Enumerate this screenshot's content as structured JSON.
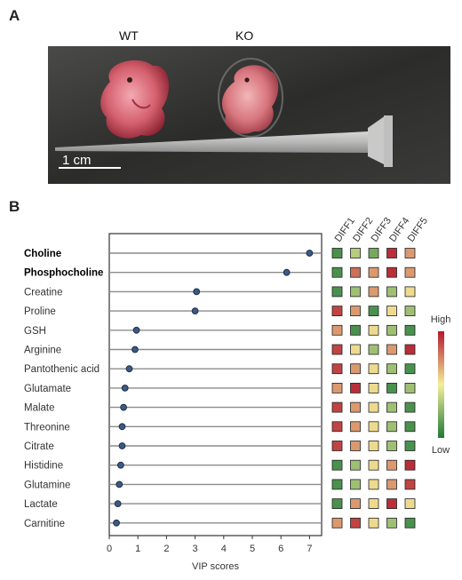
{
  "panel_a": {
    "letter": "A",
    "group_labels": [
      "WT",
      "KO"
    ],
    "scale_bar_label": "1 cm"
  },
  "panel_b": {
    "letter": "B"
  },
  "colors": {
    "dot_fill": "#3b5a85",
    "dot_stroke": "#1e2e4a",
    "line": "#8c8c8c",
    "heat_low": "#1f7a3a",
    "heat_mid": "#f5ef9a",
    "heat_high": "#b3192e"
  },
  "chart_data": {
    "type": "dot",
    "xlabel": "VIP scores",
    "xlim": [
      0,
      7.3
    ],
    "xticks": [
      0,
      1,
      2,
      3,
      4,
      5,
      6,
      7
    ],
    "metabolites": [
      {
        "name": "Choline",
        "vip": 7.0,
        "bold": true,
        "heat": [
          0.1,
          0.35,
          0.2,
          0.95,
          0.7
        ]
      },
      {
        "name": "Phosphocholine",
        "vip": 6.2,
        "bold": true,
        "heat": [
          0.1,
          0.8,
          0.7,
          0.95,
          0.7
        ]
      },
      {
        "name": "Creatine",
        "vip": 3.05,
        "bold": false,
        "heat": [
          0.1,
          0.3,
          0.7,
          0.3,
          0.55
        ]
      },
      {
        "name": "Proline",
        "vip": 3.0,
        "bold": false,
        "heat": [
          0.9,
          0.7,
          0.1,
          0.55,
          0.3
        ]
      },
      {
        "name": "GSH",
        "vip": 0.95,
        "bold": false,
        "heat": [
          0.7,
          0.1,
          0.55,
          0.3,
          0.1
        ]
      },
      {
        "name": "Arginine",
        "vip": 0.9,
        "bold": false,
        "heat": [
          0.9,
          0.55,
          0.3,
          0.7,
          0.95
        ]
      },
      {
        "name": "Pantothenic acid",
        "vip": 0.7,
        "bold": false,
        "heat": [
          0.9,
          0.7,
          0.55,
          0.3,
          0.1
        ]
      },
      {
        "name": "Glutamate",
        "vip": 0.55,
        "bold": false,
        "heat": [
          0.7,
          0.95,
          0.55,
          0.1,
          0.3
        ]
      },
      {
        "name": "Malate",
        "vip": 0.5,
        "bold": false,
        "heat": [
          0.9,
          0.7,
          0.55,
          0.3,
          0.1
        ]
      },
      {
        "name": "Threonine",
        "vip": 0.45,
        "bold": false,
        "heat": [
          0.9,
          0.7,
          0.55,
          0.3,
          0.1
        ]
      },
      {
        "name": "Citrate",
        "vip": 0.45,
        "bold": false,
        "heat": [
          0.9,
          0.7,
          0.55,
          0.3,
          0.1
        ]
      },
      {
        "name": "Histidine",
        "vip": 0.4,
        "bold": false,
        "heat": [
          0.1,
          0.3,
          0.55,
          0.7,
          0.95
        ]
      },
      {
        "name": "Glutamine",
        "vip": 0.35,
        "bold": false,
        "heat": [
          0.1,
          0.3,
          0.55,
          0.7,
          0.9
        ]
      },
      {
        "name": "Lactate",
        "vip": 0.3,
        "bold": false,
        "heat": [
          0.1,
          0.7,
          0.55,
          0.95,
          0.55
        ]
      },
      {
        "name": "Carnitine",
        "vip": 0.25,
        "bold": false,
        "heat": [
          0.7,
          0.9,
          0.55,
          0.3,
          0.1
        ]
      }
    ],
    "heatmap_columns": [
      "DIFF1",
      "DIFF2",
      "DIFF3",
      "DIFF4",
      "DIFF5"
    ],
    "colorbar_labels": {
      "high": "High",
      "low": "Low"
    }
  }
}
